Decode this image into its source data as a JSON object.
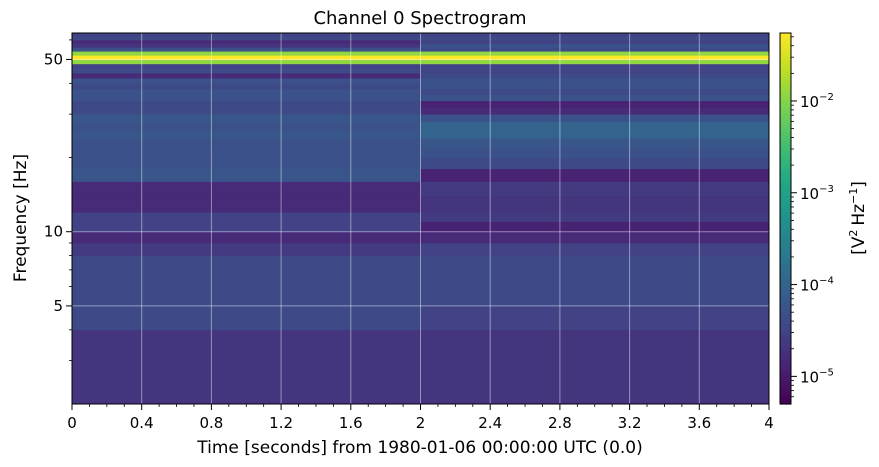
{
  "chart_data": {
    "type": "heatmap",
    "title": "Channel 0 Spectrogram",
    "xlabel": "Time [seconds] from 1980-01-06 00:00:00 UTC (0.0)",
    "ylabel": "Frequency [Hz]",
    "colorbar_label_base": "[V",
    "colorbar_label_mid": "Hz",
    "colorbar_label_end": "]",
    "colorbar_label_sup1": "2",
    "colorbar_label_sup2": "−1",
    "colormap": "viridis",
    "xlim": [
      0,
      4
    ],
    "ylim_hz": [
      2,
      64
    ],
    "y_scale": "log",
    "color_scale": "log",
    "clim": [
      5e-06,
      0.055
    ],
    "grid": true,
    "x_ticks": [
      "0",
      "0.4",
      "0.8",
      "1.2",
      "1.6",
      "2",
      "2.4",
      "2.8",
      "3.2",
      "3.6",
      "4"
    ],
    "y_ticks": [
      "5",
      "10",
      "50"
    ],
    "colorbar_tick_base": "10",
    "colorbar_tick_exponents": [
      "−5",
      "−4",
      "−3",
      "−2"
    ],
    "time_segments": [
      0,
      2,
      4
    ],
    "frequency_edges_hz": [
      2,
      4,
      5,
      6,
      7,
      8,
      9,
      10,
      11,
      12,
      14,
      16,
      18,
      20,
      22,
      24,
      26,
      28,
      30,
      32,
      34,
      36,
      38,
      40,
      42,
      44,
      46,
      48,
      50,
      52,
      54,
      56,
      58,
      60,
      62,
      64
    ],
    "psd_segment_0_to_2": [
      2e-05,
      4e-05,
      4e-05,
      4e-05,
      4e-05,
      2.5e-05,
      1.5e-05,
      3e-05,
      3e-05,
      1.5e-05,
      1.5e-05,
      6e-05,
      5e-05,
      5e-05,
      5e-05,
      6e-05,
      5e-05,
      6e-05,
      4e-05,
      4e-05,
      5e-05,
      5e-05,
      4e-05,
      5e-05,
      1.5e-05,
      4e-05,
      3e-05,
      0.012,
      0.055,
      0.012,
      5e-05,
      2e-05,
      1.5e-05,
      4e-05,
      3e-05
    ],
    "psd_segment_2_to_4": [
      2e-05,
      3e-05,
      4e-05,
      4e-05,
      4e-05,
      3e-05,
      1.5e-05,
      1.2e-05,
      2.5e-05,
      2e-05,
      2.5e-05,
      1.2e-05,
      4e-05,
      5e-05,
      6e-05,
      0.0001,
      0.0001,
      5e-05,
      1.5e-05,
      1.2e-05,
      5e-05,
      4e-05,
      5e-05,
      5e-05,
      4e-05,
      3e-05,
      3e-05,
      0.012,
      0.055,
      0.012,
      4e-05,
      5e-05,
      3e-05,
      4e-05,
      3e-05
    ]
  }
}
